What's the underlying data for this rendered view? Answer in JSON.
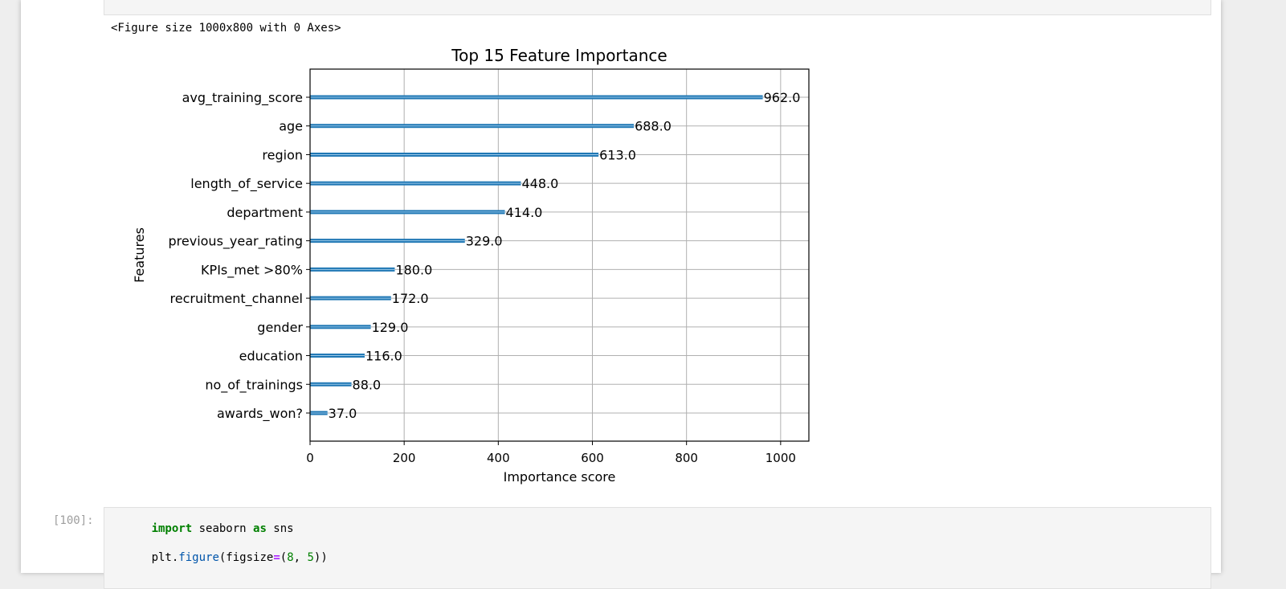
{
  "figure_repr": "<Figure size 1000x800 with 0 Axes>",
  "chart_data": {
    "type": "bar",
    "orientation": "horizontal",
    "title": "Top 15 Feature Importance",
    "xlabel": "Importance score",
    "ylabel": "Features",
    "xlim": [
      0,
      1060
    ],
    "xticks": [
      0,
      200,
      400,
      600,
      800,
      1000
    ],
    "grid": true,
    "categories": [
      "avg_training_score",
      "age",
      "region",
      "length_of_service",
      "department",
      "previous_year_rating",
      "KPIs_met >80%",
      "recruitment_channel",
      "gender",
      "education",
      "no_of_trainings",
      "awards_won?"
    ],
    "values": [
      962.0,
      688.0,
      613.0,
      448.0,
      414.0,
      329.0,
      180.0,
      172.0,
      129.0,
      116.0,
      88.0,
      37.0
    ],
    "value_labels": [
      "962.0",
      "688.0",
      "613.0",
      "448.0",
      "414.0",
      "329.0",
      "180.0",
      "172.0",
      "129.0",
      "116.0",
      "88.0",
      "37.0"
    ],
    "bar_color": "#1f77b4",
    "grid_color": "#b0b0b0"
  },
  "next_cell": {
    "prompt": "[100]:",
    "line1": {
      "kw1": "import",
      "mod": " seaborn ",
      "kw2": "as",
      "alias": " sns"
    },
    "line2": {
      "obj": "plt.",
      "fn": "figure",
      "open": "(figsize",
      "eq": "=",
      "paren": "(",
      "n1": "8",
      "sep": ", ",
      "n2": "5",
      "close": "))"
    }
  }
}
